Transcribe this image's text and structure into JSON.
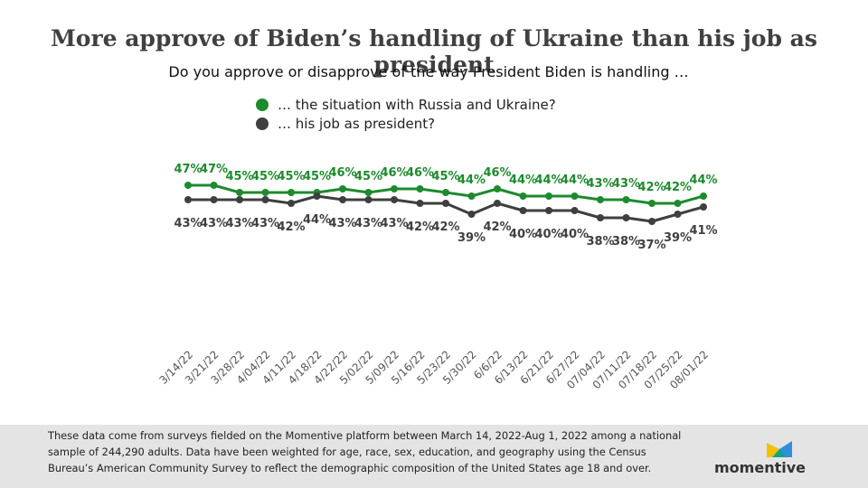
{
  "title": "More approve of Biden’s handling of Ukraine than his job as president",
  "subtitle": "Do you approve or disapprove of the way President Biden is handling …",
  "legend": [
    {
      "label": "… the situation with Russia and Ukraine?",
      "color": "#1e8a2e"
    },
    {
      "label": "… his job as president?",
      "color": "#3f3f3f"
    }
  ],
  "footnote": "These data come from surveys fielded on the Momentive platform between March 14, 2022-Aug 1, 2022 among a national sample of 244,290  adults. Data have been weighted for age, race, sex, education, and geography using the Census Bureau’s American Community Survey to reflect the demographic composition of the United States age 18 and over.",
  "logo": {
    "text": "momentive"
  },
  "chart_data": {
    "type": "line",
    "x": [
      "3/14/22",
      "3/21/22",
      "3/28/22",
      "4/04/22",
      "4/11/22",
      "4/18/22",
      "4/22/22",
      "5/02/22",
      "5/09/22",
      "5/16/22",
      "5/23/22",
      "5/30/22",
      "6/6/22",
      "6/13/22",
      "6/21/22",
      "6/27/22",
      "07/04/22",
      "07/11/22",
      "07/18/22",
      "07/25/22",
      "08/01/22"
    ],
    "series": [
      {
        "name": "… the situation with Russia and Ukraine?",
        "color": "#1e8a2e",
        "values": [
          47,
          47,
          45,
          45,
          45,
          45,
          46,
          45,
          46,
          46,
          45,
          44,
          46,
          44,
          44,
          44,
          43,
          43,
          42,
          42,
          44
        ]
      },
      {
        "name": "… his job as president?",
        "color": "#3f3f3f",
        "values": [
          43,
          43,
          43,
          43,
          42,
          44,
          43,
          43,
          43,
          42,
          42,
          39,
          42,
          40,
          40,
          40,
          38,
          38,
          37,
          39,
          41
        ]
      }
    ],
    "value_suffix": "%",
    "ylim": [
      37,
      47
    ],
    "grid": false,
    "legend_position": "top-left"
  }
}
